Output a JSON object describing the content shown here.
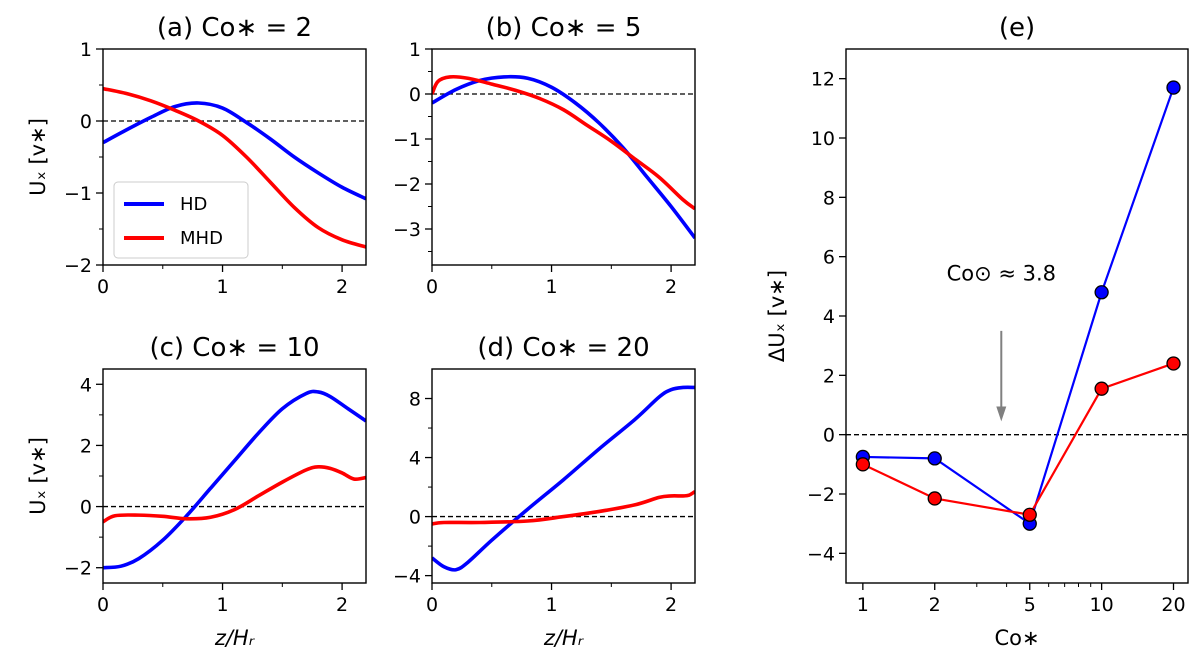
{
  "colors": {
    "hd": "#0000ff",
    "mhd": "#ff0000",
    "arrow": "#808080"
  },
  "legend": {
    "items": [
      "HD",
      "MHD"
    ]
  },
  "chart_data": [
    {
      "id": "a",
      "type": "line",
      "title": "(a) Co∗ = 2",
      "xlabel": "",
      "ylabel": "Uₓ [v∗]",
      "xlim": [
        0,
        2.2
      ],
      "ylim": [
        -2,
        1
      ],
      "xticks": [
        0,
        1,
        2
      ],
      "xtick_labels": [
        "0",
        "1",
        "2"
      ],
      "yticks": [
        -2,
        -1,
        0,
        1
      ],
      "ytick_labels": [
        "−2",
        "−1",
        "0",
        "1"
      ],
      "hline": 0,
      "series": [
        {
          "name": "HD",
          "color_key": "hd",
          "x": [
            0,
            0.2,
            0.4,
            0.6,
            0.8,
            1.0,
            1.2,
            1.4,
            1.6,
            1.8,
            2.0,
            2.2
          ],
          "y": [
            -0.3,
            -0.12,
            0.05,
            0.2,
            0.25,
            0.18,
            -0.02,
            -0.25,
            -0.5,
            -0.72,
            -0.92,
            -1.08
          ]
        },
        {
          "name": "MHD",
          "color_key": "mhd",
          "x": [
            0,
            0.2,
            0.4,
            0.6,
            0.8,
            1.0,
            1.2,
            1.4,
            1.6,
            1.8,
            2.0,
            2.2
          ],
          "y": [
            0.45,
            0.38,
            0.28,
            0.15,
            0.0,
            -0.2,
            -0.5,
            -0.85,
            -1.2,
            -1.48,
            -1.65,
            -1.75
          ]
        }
      ]
    },
    {
      "id": "b",
      "type": "line",
      "title": "(b) Co∗ = 5",
      "xlabel": "",
      "ylabel": "",
      "xlim": [
        0,
        2.2
      ],
      "ylim": [
        -3.8,
        1
      ],
      "xticks": [
        0,
        1,
        2
      ],
      "xtick_labels": [
        "0",
        "1",
        "2"
      ],
      "yticks": [
        -3,
        -2,
        -1,
        0,
        1
      ],
      "ytick_labels": [
        "−3",
        "−2",
        "−1",
        "0",
        "1"
      ],
      "hline": 0,
      "series": [
        {
          "name": "HD",
          "color_key": "hd",
          "x": [
            0,
            0.2,
            0.4,
            0.6,
            0.8,
            1.0,
            1.2,
            1.4,
            1.6,
            1.8,
            2.0,
            2.2
          ],
          "y": [
            -0.2,
            0.1,
            0.3,
            0.38,
            0.35,
            0.15,
            -0.2,
            -0.65,
            -1.2,
            -1.85,
            -2.5,
            -3.2
          ]
        },
        {
          "name": "MHD",
          "color_key": "mhd",
          "x": [
            0,
            0.05,
            0.15,
            0.3,
            0.5,
            0.7,
            0.9,
            1.1,
            1.3,
            1.5,
            1.7,
            1.9,
            2.1,
            2.2
          ],
          "y": [
            0.0,
            0.28,
            0.38,
            0.35,
            0.22,
            0.08,
            -0.1,
            -0.35,
            -0.7,
            -1.05,
            -1.45,
            -1.85,
            -2.35,
            -2.55
          ]
        }
      ]
    },
    {
      "id": "c",
      "type": "line",
      "title": "(c) Co∗ = 10",
      "xlabel": "z/Hᵣ",
      "ylabel": "Uₓ [v∗]",
      "xlim": [
        0,
        2.2
      ],
      "ylim": [
        -2.5,
        4.5
      ],
      "xticks": [
        0,
        1,
        2
      ],
      "xtick_labels": [
        "0",
        "1",
        "2"
      ],
      "yticks": [
        -2,
        0,
        2,
        4
      ],
      "ytick_labels": [
        "−2",
        "0",
        "2",
        "4"
      ],
      "hline": 0,
      "series": [
        {
          "name": "HD",
          "color_key": "hd",
          "x": [
            0,
            0.15,
            0.3,
            0.5,
            0.7,
            0.9,
            1.1,
            1.3,
            1.5,
            1.7,
            1.8,
            1.9,
            2.05,
            2.2
          ],
          "y": [
            -2.0,
            -1.95,
            -1.7,
            -1.1,
            -0.3,
            0.6,
            1.5,
            2.4,
            3.2,
            3.7,
            3.75,
            3.6,
            3.2,
            2.8
          ]
        },
        {
          "name": "MHD",
          "color_key": "mhd",
          "x": [
            0,
            0.1,
            0.3,
            0.5,
            0.7,
            0.9,
            1.1,
            1.3,
            1.5,
            1.7,
            1.8,
            1.9,
            2.0,
            2.1,
            2.2
          ],
          "y": [
            -0.5,
            -0.3,
            -0.28,
            -0.32,
            -0.4,
            -0.35,
            -0.1,
            0.35,
            0.8,
            1.2,
            1.3,
            1.25,
            1.1,
            0.9,
            0.95
          ]
        }
      ]
    },
    {
      "id": "d",
      "type": "line",
      "title": "(d) Co∗ = 20",
      "xlabel": "z/Hᵣ",
      "ylabel": "",
      "xlim": [
        0,
        2.2
      ],
      "ylim": [
        -4.5,
        10
      ],
      "xticks": [
        0,
        1,
        2
      ],
      "xtick_labels": [
        "0",
        "1",
        "2"
      ],
      "yticks": [
        -4,
        0,
        4,
        8
      ],
      "ytick_labels": [
        "−4",
        "0",
        "4",
        "8"
      ],
      "hline": 0,
      "series": [
        {
          "name": "HD",
          "color_key": "hd",
          "x": [
            0,
            0.1,
            0.2,
            0.3,
            0.5,
            0.8,
            1.1,
            1.4,
            1.7,
            1.9,
            2.0,
            2.1,
            2.2
          ],
          "y": [
            -2.8,
            -3.4,
            -3.6,
            -3.1,
            -1.6,
            0.5,
            2.5,
            4.6,
            6.6,
            8.1,
            8.6,
            8.75,
            8.75
          ]
        },
        {
          "name": "MHD",
          "color_key": "mhd",
          "x": [
            0,
            0.1,
            0.4,
            0.8,
            1.1,
            1.4,
            1.7,
            1.9,
            2.0,
            2.1,
            2.15,
            2.2
          ],
          "y": [
            -0.5,
            -0.4,
            -0.4,
            -0.3,
            0.0,
            0.35,
            0.8,
            1.3,
            1.4,
            1.4,
            1.45,
            1.7
          ]
        }
      ]
    },
    {
      "id": "e",
      "type": "line",
      "title": "(e)",
      "xlabel": "Co∗",
      "ylabel": "ΔUₓ [v∗]",
      "xscale": "log",
      "xlim": [
        0.85,
        23
      ],
      "ylim": [
        -5,
        13
      ],
      "xticks": [
        1,
        2,
        5,
        10,
        20
      ],
      "xtick_labels": [
        "1",
        "2",
        "5",
        "10",
        "20"
      ],
      "yticks": [
        -4,
        -2,
        0,
        2,
        4,
        6,
        8,
        10,
        12
      ],
      "ytick_labels": [
        "−4",
        "−2",
        "0",
        "2",
        "4",
        "6",
        "8",
        "10",
        "12"
      ],
      "hline": 0,
      "annotation": {
        "text": "Co⊙ ≈ 3.8",
        "x": 3.8
      },
      "series": [
        {
          "name": "HD",
          "color_key": "hd",
          "x": [
            1,
            2,
            5,
            10,
            20
          ],
          "y": [
            -0.75,
            -0.8,
            -3.0,
            4.8,
            11.7
          ]
        },
        {
          "name": "MHD",
          "color_key": "mhd",
          "x": [
            1,
            2,
            5,
            10,
            20
          ],
          "y": [
            -1.0,
            -2.15,
            -2.7,
            1.55,
            2.4
          ]
        }
      ]
    }
  ]
}
